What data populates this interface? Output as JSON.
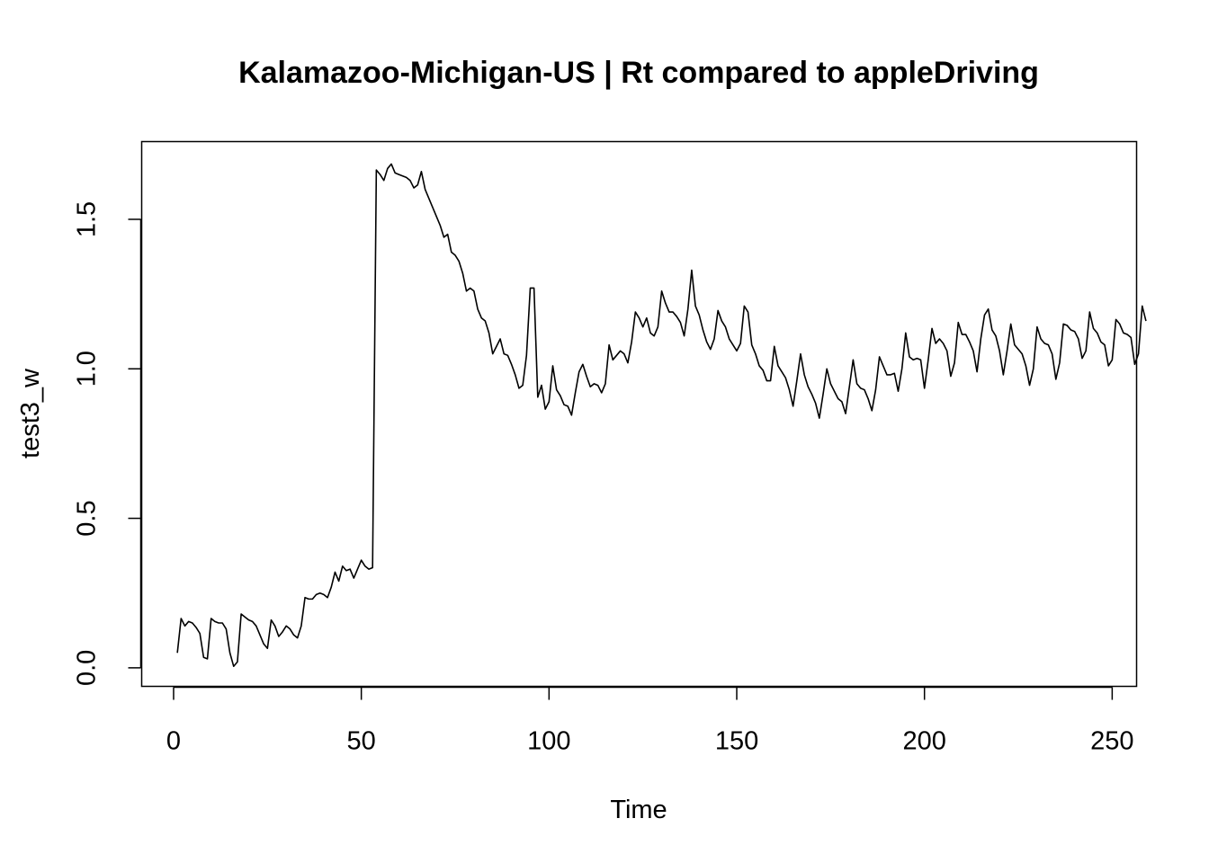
{
  "chart_data": {
    "type": "line",
    "title": "Kalamazoo-Michigan-US | Rt compared to appleDriving",
    "xlabel": "Time",
    "ylabel": "test3_w",
    "xlim": [
      -8.5,
      256.5
    ],
    "ylim": [
      -0.062,
      1.76
    ],
    "x_ticks": [
      0,
      50,
      100,
      150,
      200,
      250
    ],
    "x_tick_labels": [
      "0",
      "50",
      "100",
      "150",
      "200",
      "250"
    ],
    "y_ticks": [
      0.0,
      0.5,
      1.0,
      1.5
    ],
    "y_tick_labels": [
      "0.0",
      "0.5",
      "1.0",
      "1.5"
    ],
    "grid": false,
    "legend": "none",
    "line_color": "#000000",
    "series": [
      {
        "x_start": 1,
        "x_step": 1,
        "values": [
          0.05,
          0.165,
          0.14,
          0.155,
          0.15,
          0.135,
          0.115,
          0.035,
          0.03,
          0.165,
          0.155,
          0.15,
          0.15,
          0.13,
          0.05,
          0.005,
          0.02,
          0.18,
          0.17,
          0.16,
          0.155,
          0.14,
          0.11,
          0.08,
          0.065,
          0.16,
          0.14,
          0.105,
          0.12,
          0.14,
          0.13,
          0.11,
          0.1,
          0.14,
          0.235,
          0.23,
          0.23,
          0.245,
          0.25,
          0.245,
          0.235,
          0.27,
          0.32,
          0.29,
          0.34,
          0.325,
          0.33,
          0.3,
          0.33,
          0.36,
          0.34,
          0.33,
          0.335,
          1.665,
          1.65,
          1.63,
          1.67,
          1.685,
          1.655,
          1.65,
          1.645,
          1.64,
          1.63,
          1.605,
          1.615,
          1.66,
          1.6,
          1.57,
          1.54,
          1.51,
          1.48,
          1.44,
          1.45,
          1.39,
          1.38,
          1.36,
          1.32,
          1.26,
          1.27,
          1.26,
          1.2,
          1.17,
          1.16,
          1.12,
          1.05,
          1.075,
          1.1,
          1.05,
          1.045,
          1.015,
          0.98,
          0.935,
          0.945,
          1.045,
          1.27,
          1.27,
          0.905,
          0.945,
          0.865,
          0.89,
          1.01,
          0.93,
          0.91,
          0.88,
          0.875,
          0.845,
          0.92,
          0.99,
          1.015,
          0.975,
          0.94,
          0.95,
          0.945,
          0.92,
          0.95,
          1.08,
          1.03,
          1.045,
          1.06,
          1.05,
          1.02,
          1.09,
          1.19,
          1.17,
          1.14,
          1.17,
          1.12,
          1.11,
          1.14,
          1.26,
          1.22,
          1.19,
          1.19,
          1.175,
          1.155,
          1.11,
          1.2,
          1.33,
          1.21,
          1.18,
          1.13,
          1.09,
          1.065,
          1.1,
          1.195,
          1.16,
          1.14,
          1.1,
          1.08,
          1.06,
          1.085,
          1.21,
          1.19,
          1.08,
          1.05,
          1.01,
          0.995,
          0.96,
          0.96,
          1.075,
          1.01,
          0.99,
          0.97,
          0.93,
          0.875,
          0.96,
          1.05,
          0.98,
          0.94,
          0.915,
          0.885,
          0.835,
          0.915,
          1.0,
          0.95,
          0.925,
          0.9,
          0.89,
          0.85,
          0.94,
          1.03,
          0.95,
          0.935,
          0.93,
          0.9,
          0.86,
          0.93,
          1.04,
          1.01,
          0.98,
          0.98,
          0.985,
          0.925,
          1.0,
          1.12,
          1.04,
          1.03,
          1.035,
          1.03,
          0.935,
          1.03,
          1.135,
          1.085,
          1.1,
          1.085,
          1.06,
          0.975,
          1.02,
          1.155,
          1.115,
          1.115,
          1.09,
          1.06,
          0.99,
          1.1,
          1.18,
          1.2,
          1.13,
          1.11,
          1.06,
          0.98,
          1.06,
          1.15,
          1.08,
          1.065,
          1.05,
          1.01,
          0.945,
          1.0,
          1.14,
          1.1,
          1.085,
          1.08,
          1.05,
          0.965,
          1.02,
          1.15,
          1.145,
          1.13,
          1.125,
          1.1,
          1.035,
          1.06,
          1.19,
          1.135,
          1.12,
          1.09,
          1.08,
          1.01,
          1.03,
          1.165,
          1.15,
          1.12,
          1.115,
          1.105,
          1.015,
          1.05,
          1.21,
          1.16
        ]
      }
    ]
  }
}
